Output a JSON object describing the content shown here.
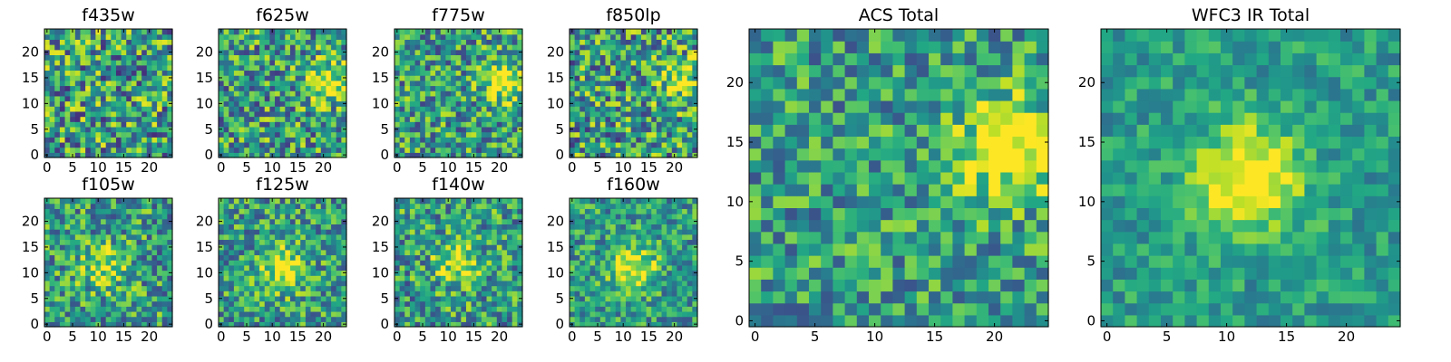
{
  "figure_title": "",
  "chart_data": [
    {
      "type": "heatmap",
      "title": "f435w",
      "grid_size": 25,
      "xticks": [
        0,
        5,
        10,
        15,
        20
      ],
      "yticks": [
        0,
        5,
        10,
        15,
        20
      ],
      "colormap": "viridis",
      "source": {
        "x": 0.0,
        "y": 0.0,
        "strength": 0.0
      },
      "noise": 0.42,
      "seed": 11
    },
    {
      "type": "heatmap",
      "title": "f625w",
      "grid_size": 25,
      "xticks": [
        0,
        5,
        10,
        15,
        20
      ],
      "yticks": [
        0,
        5,
        10,
        15,
        20
      ],
      "colormap": "viridis",
      "source": {
        "x": 21,
        "y": 14.5,
        "strength": 0.45
      },
      "noise": 0.38,
      "seed": 23
    },
    {
      "type": "heatmap",
      "title": "f775w",
      "grid_size": 25,
      "xticks": [
        0,
        5,
        10,
        15,
        20
      ],
      "yticks": [
        0,
        5,
        10,
        15,
        20
      ],
      "colormap": "viridis",
      "source": {
        "x": 21,
        "y": 14.5,
        "strength": 0.45
      },
      "noise": 0.36,
      "seed": 37
    },
    {
      "type": "heatmap",
      "title": "f850lp",
      "grid_size": 25,
      "xticks": [
        0,
        5,
        10,
        15,
        20
      ],
      "yticks": [
        0,
        5,
        10,
        15,
        20
      ],
      "colormap": "viridis",
      "source": {
        "x": 21,
        "y": 14.5,
        "strength": 0.35
      },
      "noise": 0.4,
      "seed": 41
    },
    {
      "type": "heatmap",
      "title": "f105w",
      "grid_size": 25,
      "xticks": [
        0,
        5,
        10,
        15,
        20
      ],
      "yticks": [
        0,
        5,
        10,
        15,
        20
      ],
      "colormap": "viridis",
      "source": {
        "x": 11,
        "y": 11,
        "strength": 0.35
      },
      "noise": 0.34,
      "seed": 53
    },
    {
      "type": "heatmap",
      "title": "f125w",
      "grid_size": 25,
      "xticks": [
        0,
        5,
        10,
        15,
        20
      ],
      "yticks": [
        0,
        5,
        10,
        15,
        20
      ],
      "colormap": "viridis",
      "source": {
        "x": 12,
        "y": 11,
        "strength": 0.45
      },
      "noise": 0.32,
      "seed": 67
    },
    {
      "type": "heatmap",
      "title": "f140w",
      "grid_size": 25,
      "xticks": [
        0,
        5,
        10,
        15,
        20
      ],
      "yticks": [
        0,
        5,
        10,
        15,
        20
      ],
      "colormap": "viridis",
      "source": {
        "x": 12,
        "y": 12,
        "strength": 0.4
      },
      "noise": 0.34,
      "seed": 79
    },
    {
      "type": "heatmap",
      "title": "f160w",
      "grid_size": 25,
      "xticks": [
        0,
        5,
        10,
        15,
        20
      ],
      "yticks": [
        0,
        5,
        10,
        15,
        20
      ],
      "colormap": "viridis",
      "source": {
        "x": 12,
        "y": 11,
        "strength": 0.5
      },
      "noise": 0.28,
      "seed": 83
    },
    {
      "type": "heatmap",
      "title": "ACS Total",
      "grid_size": 25,
      "xticks": [
        0,
        5,
        10,
        15,
        20
      ],
      "yticks": [
        0,
        5,
        10,
        15,
        20
      ],
      "colormap": "viridis",
      "source": {
        "x": 21,
        "y": 14.5,
        "strength": 0.5
      },
      "noise": 0.3,
      "seed": 97
    },
    {
      "type": "heatmap",
      "title": "WFC3 IR Total",
      "grid_size": 25,
      "xticks": [
        0,
        5,
        10,
        15,
        20
      ],
      "yticks": [
        0,
        5,
        10,
        15,
        20
      ],
      "colormap": "viridis",
      "source": {
        "x": 12,
        "y": 12,
        "strength": 0.6
      },
      "noise": 0.18,
      "seed": 101
    }
  ]
}
